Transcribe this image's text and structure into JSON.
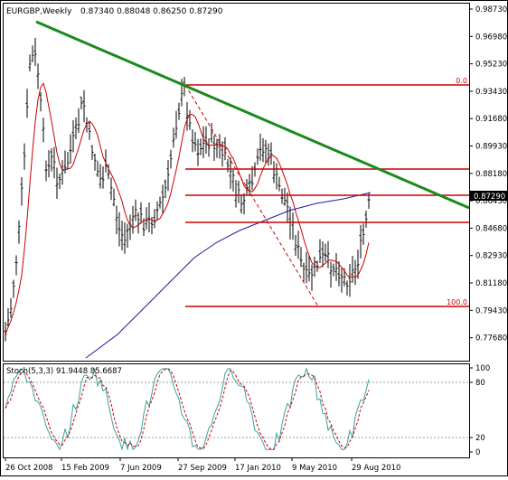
{
  "header": {
    "symbol_timeframe": "EURGBP,Weekly",
    "ohlc": "0.87340 0.88048 0.86250 0.87290"
  },
  "price_axis": {
    "labels": [
      "0.98730",
      "0.96980",
      "0.95230",
      "0.93430",
      "0.91680",
      "0.89930",
      "0.88180",
      "0.86430",
      "0.84680",
      "0.82930",
      "0.81180",
      "0.79430",
      "0.77680"
    ],
    "current_price": "0.87290"
  },
  "fibonacci": {
    "level_0_label": "0.0",
    "level_100_label": "100.0"
  },
  "oscillator": {
    "label": "Stoch(5,3,3) 91.9448 85.6687",
    "scale_labels": [
      "100",
      "80",
      "20",
      "0"
    ]
  },
  "time_axis": {
    "labels": [
      "26 Oct 2008",
      "15 Feb 2009",
      "7 Jun 2009",
      "27 Sep 2009",
      "17 Jan 2010",
      "9 May 2010",
      "29 Aug 2010"
    ]
  },
  "colors": {
    "trendline": "#1a8a1a",
    "fib_lines": "#cc0000",
    "ma_short": "#cc0000",
    "ma_long": "#1a1aa0",
    "stoch_main": "#3aa0a0",
    "stoch_signal": "#cc0000",
    "bars": "#000000"
  },
  "chart_data": {
    "type": "line",
    "description_series": [
      {
        "name": "price_close",
        "values": [
          0.8,
          0.83,
          0.905,
          0.955,
          0.965,
          0.95,
          0.91,
          0.89,
          0.88,
          0.905,
          0.89,
          0.87,
          0.89,
          0.905,
          0.9,
          0.88,
          0.86,
          0.85,
          0.865,
          0.87,
          0.88,
          0.91,
          0.935,
          0.915,
          0.905,
          0.9,
          0.89,
          0.88,
          0.87,
          0.88,
          0.9,
          0.905,
          0.89,
          0.88,
          0.86,
          0.84,
          0.825,
          0.815,
          0.82,
          0.83,
          0.825,
          0.825,
          0.845,
          0.873
        ]
      }
    ]
  }
}
